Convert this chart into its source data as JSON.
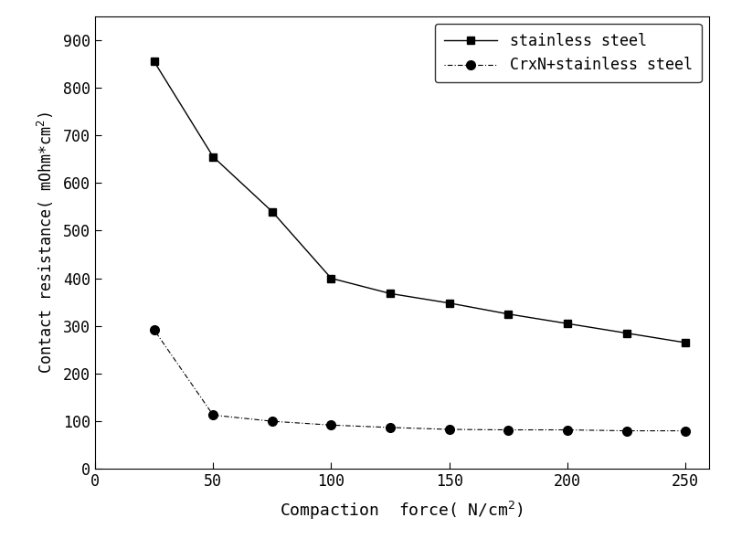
{
  "x_stainless": [
    25,
    50,
    75,
    100,
    125,
    150,
    175,
    200,
    225,
    250
  ],
  "y_stainless": [
    855,
    655,
    540,
    400,
    368,
    348,
    325,
    305,
    285,
    265
  ],
  "x_crxn": [
    25,
    50,
    75,
    100,
    125,
    150,
    175,
    200,
    225,
    250
  ],
  "y_crxn": [
    292,
    113,
    100,
    92,
    87,
    83,
    82,
    82,
    80,
    80
  ],
  "line1_color": "#000000",
  "line2_color": "#000000",
  "marker1": "s",
  "marker2": "o",
  "marker1_size": 6,
  "marker2_size": 7,
  "label1": "stainless steel",
  "label2": "CrxN+stainless steel",
  "xlabel": "Compaction  force( N/cm²)",
  "ylabel": "Contact resistance( mOhm*cm²)",
  "xlim": [
    0,
    260
  ],
  "ylim": [
    0,
    950
  ],
  "xticks": [
    0,
    50,
    100,
    150,
    200,
    250
  ],
  "yticks": [
    0,
    100,
    200,
    300,
    400,
    500,
    600,
    700,
    800,
    900
  ],
  "legend_loc": "upper right",
  "bg_color": "#ffffff",
  "fig_width": 8.0,
  "fig_height": 5.9,
  "dpi": 100
}
